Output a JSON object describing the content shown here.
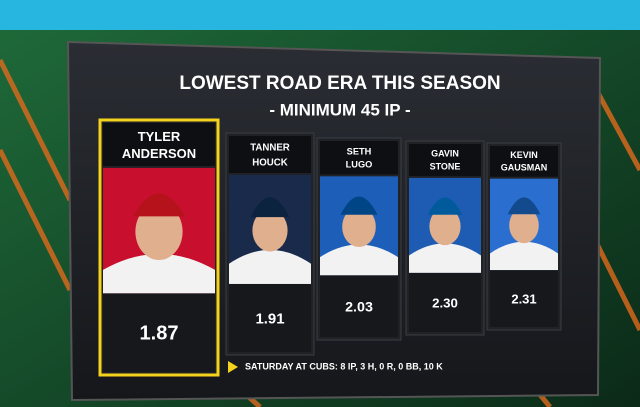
{
  "header": {
    "title": "LOWEST ROAD ERA THIS SEASON",
    "subtitle": "- MINIMUM 45 IP -"
  },
  "players": [
    {
      "first": "TYLER",
      "last": "ANDERSON",
      "era": "1.87"
    },
    {
      "first": "TANNER",
      "last": "HOUCK",
      "era": "1.91"
    },
    {
      "first": "SETH",
      "last": "LUGO",
      "era": "2.03"
    },
    {
      "first": "GAVIN",
      "last": "STONE",
      "era": "2.30"
    },
    {
      "first": "KEVIN",
      "last": "GAUSMAN",
      "era": "2.31"
    }
  ],
  "footer": {
    "note": "SATURDAY AT CUBS: 8 IP, 3 H, 0 R, 0 BB, 10 K"
  }
}
